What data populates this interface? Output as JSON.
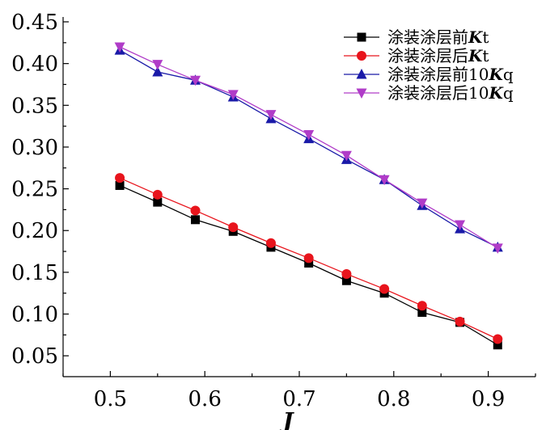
{
  "chart_data": {
    "type": "line",
    "title": "",
    "xlabel": "J",
    "ylabel": "",
    "xlim": [
      0.45,
      0.95
    ],
    "ylim": [
      0.025,
      0.45
    ],
    "xticks": [
      0.5,
      0.6,
      0.7,
      0.8,
      0.9
    ],
    "xtick_labels": [
      "0.5",
      "0.6",
      "0.7",
      "0.8",
      "0.9"
    ],
    "yticks": [
      0.05,
      0.1,
      0.15,
      0.2,
      0.25,
      0.3,
      0.35,
      0.4,
      0.45
    ],
    "ytick_labels": [
      "0.05",
      "0.10",
      "0.15",
      "0.20",
      "0.25",
      "0.30",
      "0.35",
      "0.40",
      "0.45"
    ],
    "grid": false,
    "legend_position": "top-right",
    "x": [
      0.51,
      0.55,
      0.59,
      0.63,
      0.67,
      0.71,
      0.75,
      0.79,
      0.83,
      0.87,
      0.91
    ],
    "series": [
      {
        "name": "涂装涂层前Kt",
        "legend_prefix": "涂装涂层前",
        "legend_suffix": "Kt",
        "color": "#000000",
        "marker": "square",
        "values": [
          0.254,
          0.234,
          0.213,
          0.199,
          0.18,
          0.161,
          0.14,
          0.125,
          0.102,
          0.09,
          0.063
        ]
      },
      {
        "name": "涂装涂层后Kt",
        "legend_prefix": "涂装涂层后",
        "legend_suffix": "Kt",
        "color": "#e8141c",
        "marker": "circle",
        "values": [
          0.263,
          0.243,
          0.224,
          0.204,
          0.185,
          0.167,
          0.148,
          0.13,
          0.11,
          0.091,
          0.07
        ]
      },
      {
        "name": "涂装涂层前10Kq",
        "legend_prefix": "涂装涂层前10",
        "legend_suffix": "Kq",
        "color": "#1a1aa8",
        "marker": "triangle-up",
        "values": [
          0.416,
          0.39,
          0.38,
          0.36,
          0.334,
          0.31,
          0.285,
          0.261,
          0.23,
          0.202,
          0.18
        ]
      },
      {
        "name": "涂装涂层后10Kq",
        "legend_prefix": "涂装涂层后10",
        "legend_suffix": "Kq",
        "color": "#b03cc8",
        "marker": "triangle-down",
        "values": [
          0.42,
          0.399,
          0.38,
          0.363,
          0.339,
          0.315,
          0.29,
          0.261,
          0.233,
          0.207,
          0.179
        ]
      }
    ]
  }
}
